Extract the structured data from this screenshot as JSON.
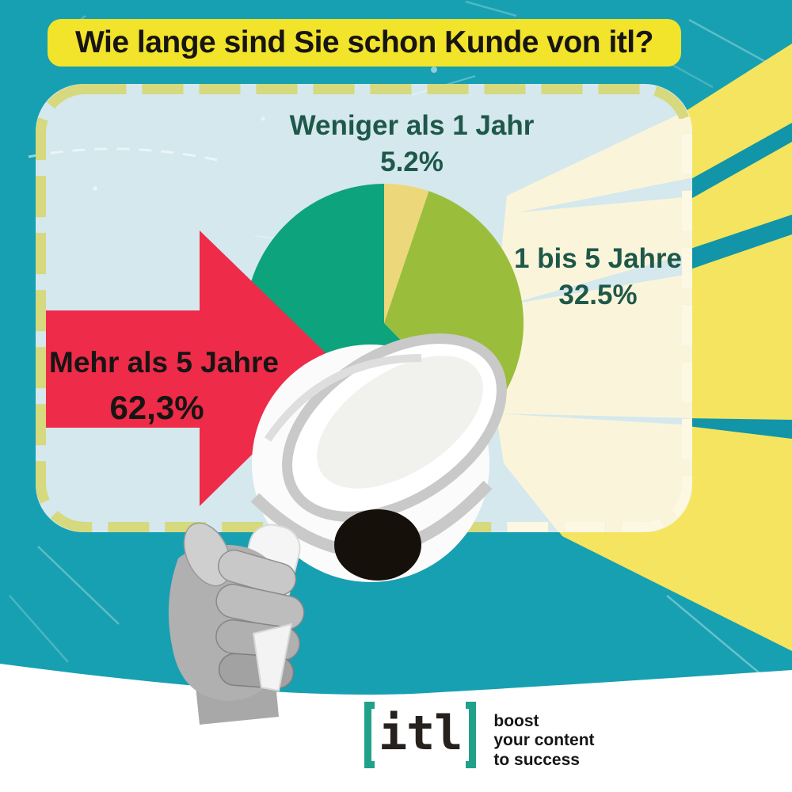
{
  "banner": {
    "text": "Wie lange sind Sie schon Kunde von itl?"
  },
  "chart_data": {
    "type": "pie",
    "title": "Wie lange sind Sie schon Kunde von itl?",
    "total": 100,
    "unit": "%",
    "start_angle_deg": 0,
    "direction": "clockwise",
    "legend_position": "around",
    "slices": [
      {
        "label": "Weniger als 1 Jahr",
        "value": 5.2,
        "value_label": "5.2%",
        "color": "#ecd87b"
      },
      {
        "label": "1 bis 5 Jahre",
        "value": 32.5,
        "value_label": "32.5%",
        "color": "#9bbd3c"
      },
      {
        "label": "Mehr als 5 Jahre",
        "value": 62.3,
        "value_label": "62,3%",
        "color": "#0da37c"
      }
    ]
  },
  "logo": {
    "name": "itl",
    "tagline_lines": [
      "boost",
      "your content",
      "to success"
    ],
    "bracket_color": "#21a189",
    "text_color": "#26211c"
  },
  "colors": {
    "teal_background": "#17a0b1",
    "teal_band": "#1295a8",
    "panel_fill": "#d4e8ed",
    "dash_olive": "#d6d97d",
    "dash_cream": "#fcf8e3",
    "beam_inner_cream": "#faf5da",
    "beam_outer_yellow": "#f5e45f",
    "banner_yellow": "#f2e32b",
    "arrow_red": "#ee2b49",
    "label_green": "#1e584a",
    "text_black": "#171513",
    "megaphone_white": "#fbfbfb",
    "megaphone_gray": "#c9c9c9",
    "cap_black": "#16100a",
    "hand_gray": "#b0b0b0"
  }
}
